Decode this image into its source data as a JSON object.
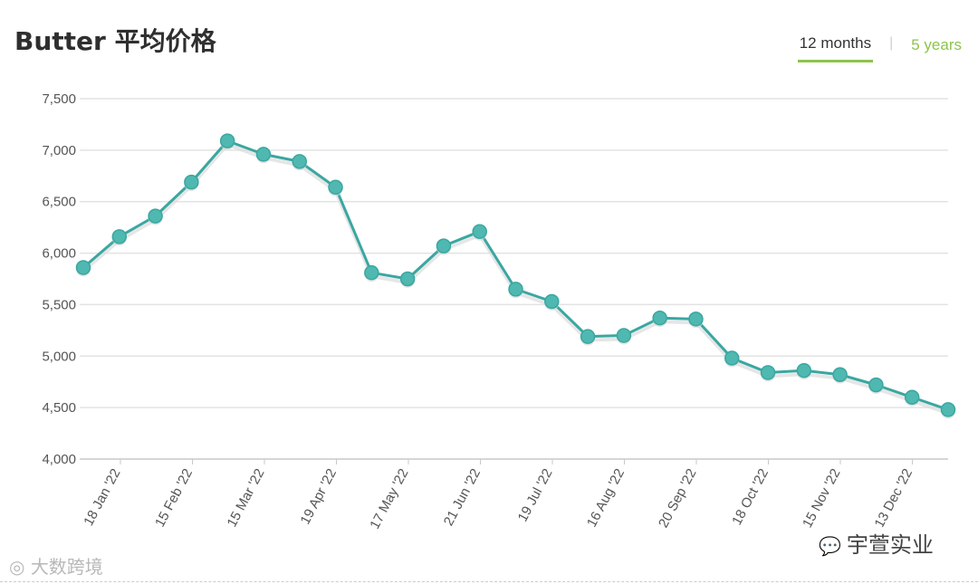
{
  "header": {
    "title": "Butter 平均价格",
    "tabs": [
      {
        "label": "12 months",
        "active": true
      },
      {
        "label": "5 years",
        "active": false
      }
    ]
  },
  "watermarks": {
    "left": "大数跨境",
    "right": "宇萱实业"
  },
  "colors": {
    "line": "#3aa7a1",
    "point_fill": "#4fb8b0",
    "grid": "#e3e3e3",
    "tab_accent": "#8cc44b"
  },
  "chart_data": {
    "type": "line",
    "title": "Butter 平均价格",
    "xlabel": "",
    "ylabel": "",
    "ylim": [
      4000,
      7500
    ],
    "yticks": [
      4000,
      4500,
      5000,
      5500,
      6000,
      6500,
      7000,
      7500
    ],
    "ytick_labels": [
      "4,000",
      "4,500",
      "5,000",
      "5,500",
      "6,000",
      "6,500",
      "7,000",
      "7,500"
    ],
    "x_tick_labels": [
      "18 Jan '22",
      "15 Feb '22",
      "15 Mar '22",
      "19 Apr '22",
      "17 May '22",
      "21 Jun '22",
      "19 Jul '22",
      "16 Aug '22",
      "20 Sep '22",
      "18 Oct '22",
      "15 Nov '22",
      "13 Dec '22"
    ],
    "grid": true,
    "legend": "none",
    "series": [
      {
        "values": [
          5860,
          6160,
          6360,
          6690,
          7090,
          6960,
          6890,
          6640,
          5810,
          5750,
          6070,
          6210,
          5650,
          5530,
          5190,
          5200,
          5370,
          5360,
          4980,
          4840,
          4860,
          4820,
          4720,
          4600,
          4480
        ]
      }
    ]
  }
}
